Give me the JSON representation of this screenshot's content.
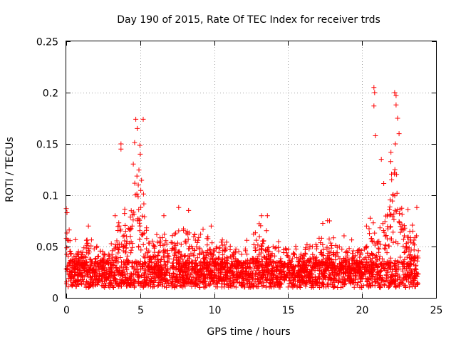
{
  "chart_data": {
    "type": "scatter",
    "title": "Day 190 of 2015, Rate Of TEC Index for receiver trds",
    "xlabel": "GPS time / hours",
    "ylabel": "ROTI / TECUs",
    "xlim": [
      0,
      25
    ],
    "ylim": [
      0,
      0.25
    ],
    "xticks": [
      0,
      5,
      10,
      15,
      20,
      25
    ],
    "xtick_labels": [
      "0",
      "5",
      "10",
      "15",
      "20",
      "25"
    ],
    "yticks": [
      0,
      0.05,
      0.1,
      0.15,
      0.2,
      0.25
    ],
    "ytick_labels": [
      "0",
      "0.05",
      "0.1",
      "0.15",
      "0.2",
      "0.25"
    ],
    "grid": true,
    "marker": "+",
    "color": "#ff0000",
    "data_extent_hours": [
      0,
      23.8
    ],
    "baseline_band": [
      0.01,
      0.04
    ],
    "highlight_points": [
      {
        "x": 0.0,
        "y": 0.087
      },
      {
        "x": 0.05,
        "y": 0.083
      },
      {
        "x": 1.5,
        "y": 0.07
      },
      {
        "x": 3.3,
        "y": 0.08
      },
      {
        "x": 3.7,
        "y": 0.145
      },
      {
        "x": 3.7,
        "y": 0.15
      },
      {
        "x": 4.7,
        "y": 0.174
      },
      {
        "x": 4.8,
        "y": 0.165
      },
      {
        "x": 5.2,
        "y": 0.174
      },
      {
        "x": 5.0,
        "y": 0.14
      },
      {
        "x": 6.6,
        "y": 0.08
      },
      {
        "x": 7.6,
        "y": 0.088
      },
      {
        "x": 9.8,
        "y": 0.07
      },
      {
        "x": 13.2,
        "y": 0.08
      },
      {
        "x": 13.6,
        "y": 0.08
      },
      {
        "x": 17.8,
        "y": 0.075
      },
      {
        "x": 20.3,
        "y": 0.07
      },
      {
        "x": 20.8,
        "y": 0.205
      },
      {
        "x": 20.85,
        "y": 0.2
      },
      {
        "x": 20.8,
        "y": 0.187
      },
      {
        "x": 20.9,
        "y": 0.158
      },
      {
        "x": 21.3,
        "y": 0.135
      },
      {
        "x": 22.0,
        "y": 0.115
      },
      {
        "x": 22.2,
        "y": 0.2
      },
      {
        "x": 22.3,
        "y": 0.197
      },
      {
        "x": 22.3,
        "y": 0.188
      },
      {
        "x": 22.4,
        "y": 0.175
      },
      {
        "x": 22.25,
        "y": 0.15
      },
      {
        "x": 22.5,
        "y": 0.16
      },
      {
        "x": 23.1,
        "y": 0.086
      },
      {
        "x": 23.7,
        "y": 0.088
      }
    ]
  }
}
